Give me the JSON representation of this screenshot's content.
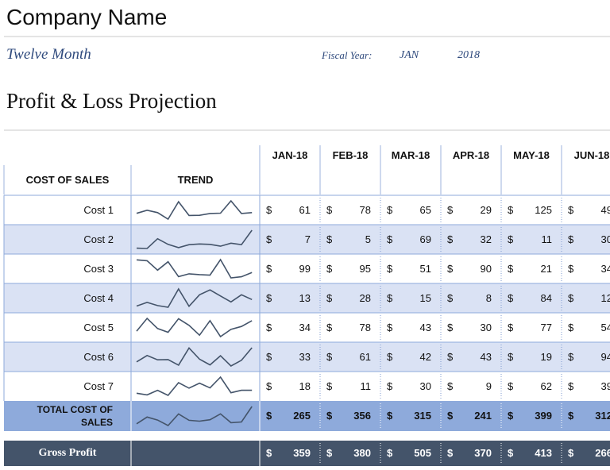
{
  "header": {
    "company": "Company Name",
    "period": "Twelve Month",
    "fiscal_year_label": "Fiscal Year:",
    "fiscal_month": "JAN",
    "fiscal_year": "2018",
    "title": "Profit & Loss Projection"
  },
  "table": {
    "section": "COST OF SALES",
    "trend_header": "TREND",
    "currency": "$",
    "months": [
      "JAN-18",
      "FEB-18",
      "MAR-18",
      "APR-18",
      "MAY-18",
      "JUN-18"
    ],
    "rows": [
      {
        "label": "Cost 1",
        "values": [
          61,
          78,
          65,
          29,
          125,
          49
        ],
        "trend_extra": [
          50,
          60,
          62,
          130,
          60,
          65
        ]
      },
      {
        "label": "Cost 2",
        "values": [
          7,
          5,
          69,
          32,
          11,
          30
        ],
        "trend_extra": [
          35,
          32,
          20,
          40,
          30,
          125
        ]
      },
      {
        "label": "Cost 3",
        "values": [
          99,
          95,
          51,
          90,
          21,
          34
        ],
        "trend_extra": [
          30,
          28,
          100,
          15,
          20,
          40
        ]
      },
      {
        "label": "Cost 4",
        "values": [
          13,
          28,
          15,
          8,
          84,
          12
        ],
        "trend_extra": [
          60,
          80,
          55,
          30,
          60,
          40
        ]
      },
      {
        "label": "Cost 5",
        "values": [
          34,
          78,
          43,
          30,
          77,
          54
        ],
        "trend_extra": [
          20,
          70,
          15,
          40,
          50,
          70
        ]
      },
      {
        "label": "Cost 6",
        "values": [
          33,
          61,
          42,
          43,
          19,
          94
        ],
        "trend_extra": [
          45,
          20,
          60,
          15,
          40,
          95
        ]
      },
      {
        "label": "Cost 7",
        "values": [
          18,
          11,
          30,
          9,
          62,
          39
        ],
        "trend_extra": [
          60,
          40,
          85,
          20,
          30,
          30
        ]
      }
    ],
    "total": {
      "label": "TOTAL COST OF SALES",
      "values": [
        265,
        356,
        315,
        241,
        399,
        312
      ],
      "trend_extra": [
        300,
        320,
        400,
        280,
        290,
        500
      ]
    },
    "gross_profit": {
      "label": "Gross Profit",
      "values": [
        359,
        380,
        505,
        370,
        413,
        266
      ]
    }
  }
}
